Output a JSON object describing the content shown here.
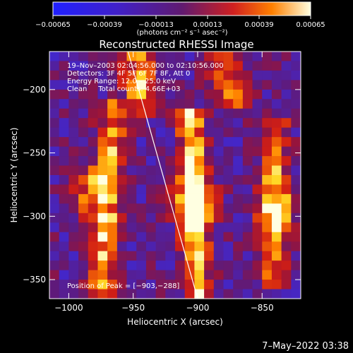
{
  "chart_data": {
    "type": "heatmap",
    "title": "Reconstructed RHESSI Image",
    "xlabel": "Heliocentric X (arcsec)",
    "ylabel": "Heliocentric Y (arcsec)",
    "xlim": [
      -1015,
      -820
    ],
    "ylim": [
      -365,
      -170
    ],
    "x_ticks": [
      -1000,
      -950,
      -900,
      -850
    ],
    "y_ticks": [
      -200,
      -250,
      -300,
      -350
    ],
    "x_tick_labels": [
      "−1000",
      "−950",
      "−900",
      "−850"
    ],
    "y_tick_labels": [
      "−200",
      "−250",
      "−300",
      "−350"
    ],
    "colorbar": {
      "range": [
        -0.00065,
        0.00065
      ],
      "ticks": [
        -0.00065,
        -0.00039,
        -0.00013,
        0.00013,
        0.00039,
        0.00065
      ],
      "tick_labels": [
        "−0.00065",
        "−0.00039",
        "−0.00013",
        "0.00013",
        "0.00039",
        "0.00065"
      ],
      "units_label": "(photons cm⁻² s⁻¹ asec⁻²)"
    },
    "annotations": [
      "19–Nov–2003 02:04:56.000 to 02:10:56.000",
      "Detectors: 3F 4F 5F 6F 7F 8F, Att 0",
      "Energy Range: 12.0 – 25.0 keV",
      "Clean     Total counts: 4.66E+03"
    ],
    "peak_label": "Position of Peak = [−903,−288]",
    "peak_position": [
      -903,
      -288
    ],
    "limb_line": [
      [
        -954,
        -170
      ],
      [
        -900,
        -365
      ]
    ],
    "emission_ridges": [
      {
        "x_top": -965,
        "y_top": -215,
        "x_bottom": -975,
        "y_bottom": -355,
        "peak_x": -985,
        "peak_y": -280,
        "strength": 0.9
      },
      {
        "x_top": -905,
        "y_top": -225,
        "x_bottom": -900,
        "y_bottom": -355,
        "peak_x": -903,
        "peak_y": -288,
        "strength": 1.0
      },
      {
        "x_top": -840,
        "y_top": -230,
        "x_bottom": -842,
        "y_bottom": -345,
        "peak_x": -840,
        "peak_y": -295,
        "strength": 0.75
      },
      {
        "x_top": -945,
        "y_top": -175,
        "x_bottom": -945,
        "y_bottom": -215,
        "peak_x": -945,
        "peak_y": -190,
        "strength": 0.55
      },
      {
        "x_top": -880,
        "y_top": -175,
        "x_bottom": -870,
        "y_bottom": -205,
        "peak_x": -875,
        "peak_y": -190,
        "strength": 0.5
      }
    ]
  },
  "footer": {
    "date_label": "7–May–2022 03:38"
  }
}
